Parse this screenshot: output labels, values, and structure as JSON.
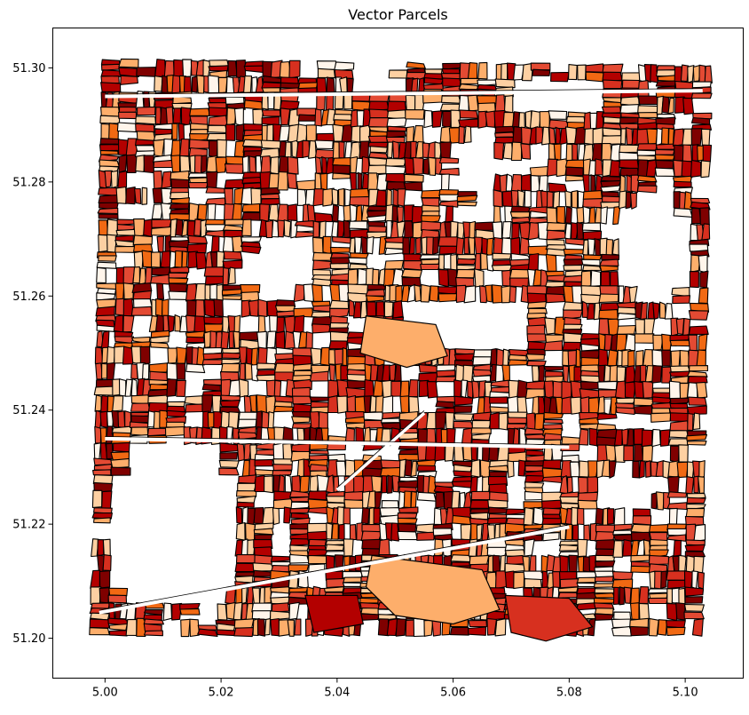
{
  "chart_data": {
    "type": "choropleth-map",
    "title": "Vector Parcels",
    "xlim": [
      4.991,
      5.11
    ],
    "ylim": [
      51.193,
      51.307
    ],
    "x_ticks": [
      5.0,
      5.02,
      5.04,
      5.06,
      5.08,
      5.1
    ],
    "x_tick_labels": [
      "5.00",
      "5.02",
      "5.04",
      "5.06",
      "5.08",
      "5.10"
    ],
    "y_ticks": [
      51.2,
      51.22,
      51.24,
      51.26,
      51.28,
      51.3
    ],
    "y_tick_labels": [
      "51.20",
      "51.22",
      "51.24",
      "51.26",
      "51.28",
      "51.30"
    ],
    "grid": false,
    "colormap": [
      "#fff5eb",
      "#fdd0a2",
      "#fdae6b",
      "#f16913",
      "#e34a33",
      "#d7301f",
      "#b30000",
      "#7f0000"
    ],
    "edge_color": "#000000",
    "extent_corners": [
      [
        4.9995,
        51.3015
      ],
      [
        5.1045,
        51.3003
      ],
      [
        5.103,
        51.2005
      ],
      [
        4.9975,
        51.2005
      ]
    ],
    "gaps": [
      {
        "center": [
          5.065,
          51.283
        ],
        "radius": [
          0.004,
          0.006
        ]
      },
      {
        "center": [
          5.094,
          51.268
        ],
        "radius": [
          0.006,
          0.01
        ]
      },
      {
        "center": [
          5.03,
          51.265
        ],
        "radius": [
          0.006,
          0.006
        ]
      },
      {
        "center": [
          5.062,
          51.255
        ],
        "radius": [
          0.012,
          0.005
        ]
      },
      {
        "center": [
          5.012,
          51.22
        ],
        "radius": [
          0.012,
          0.015
        ]
      },
      {
        "center": [
          5.09,
          51.226
        ],
        "radius": [
          0.006,
          0.004
        ]
      },
      {
        "center": [
          5.078,
          51.295
        ],
        "radius": [
          0.01,
          0.0025
        ]
      },
      {
        "center": [
          5.046,
          51.298
        ],
        "radius": [
          0.006,
          0.002
        ]
      }
    ],
    "roads": [
      {
        "from": [
          4.999,
          51.2045
        ],
        "to": [
          5.08,
          51.2195
        ]
      },
      {
        "from": [
          5.0,
          51.295
        ],
        "to": [
          5.103,
          51.296
        ]
      },
      {
        "from": [
          5.04,
          51.226
        ],
        "to": [
          5.055,
          51.2395
        ]
      },
      {
        "from": [
          5.0,
          51.235
        ],
        "to": [
          5.08,
          51.2335
        ]
      }
    ],
    "feature_classes": [
      "large-parcel"
    ],
    "large_parcels": [
      {
        "class": 2,
        "points": [
          [
            5.046,
            51.2145
          ],
          [
            5.065,
            51.212
          ],
          [
            5.068,
            51.205
          ],
          [
            5.06,
            51.2025
          ],
          [
            5.05,
            51.204
          ],
          [
            5.045,
            51.209
          ]
        ]
      },
      {
        "class": 5,
        "points": [
          [
            5.069,
            51.2075
          ],
          [
            5.08,
            51.207
          ],
          [
            5.084,
            51.202
          ],
          [
            5.076,
            51.1995
          ],
          [
            5.07,
            51.201
          ]
        ]
      },
      {
        "class": 2,
        "points": [
          [
            5.045,
            51.2565
          ],
          [
            5.057,
            51.255
          ],
          [
            5.059,
            51.2495
          ],
          [
            5.052,
            51.2475
          ],
          [
            5.044,
            51.25
          ]
        ]
      },
      {
        "class": 6,
        "points": [
          [
            5.0345,
            51.2075
          ],
          [
            5.0435,
            51.2075
          ],
          [
            5.0445,
            51.2025
          ],
          [
            5.036,
            51.201
          ]
        ]
      }
    ]
  }
}
